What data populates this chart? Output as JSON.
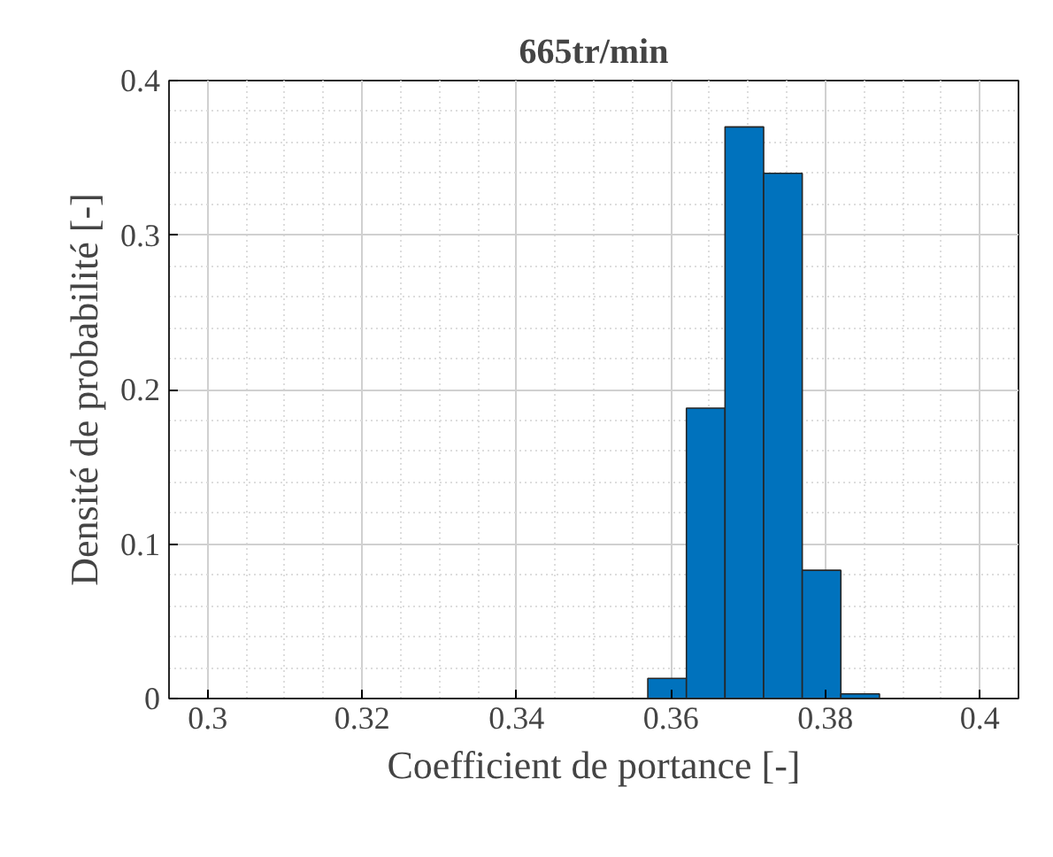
{
  "chart_data": {
    "type": "histogram",
    "title": "665tr/min",
    "xlabel": "Coefficient de portance [-]",
    "ylabel": "Densité de probabilité [-]",
    "bins": [
      0.357,
      0.362,
      0.367,
      0.372,
      0.377,
      0.382,
      0.387
    ],
    "values": [
      0.013,
      0.188,
      0.37,
      0.34,
      0.083,
      0.003
    ],
    "color": "#0072bd",
    "xlim": [
      0.295,
      0.405
    ],
    "ylim": [
      0,
      0.4
    ],
    "xticks": [
      {
        "value": 0.3,
        "label": "0.3"
      },
      {
        "value": 0.32,
        "label": "0.32"
      },
      {
        "value": 0.34,
        "label": "0.34"
      },
      {
        "value": 0.36,
        "label": "0.36"
      },
      {
        "value": 0.38,
        "label": "0.38"
      },
      {
        "value": 0.4,
        "label": "0.4"
      }
    ],
    "yticks": [
      {
        "value": 0,
        "label": "0"
      },
      {
        "value": 0.1,
        "label": "0.1"
      },
      {
        "value": 0.2,
        "label": "0.2"
      },
      {
        "value": 0.3,
        "label": "0.3"
      },
      {
        "value": 0.4,
        "label": "0.4"
      }
    ],
    "grid": true
  }
}
